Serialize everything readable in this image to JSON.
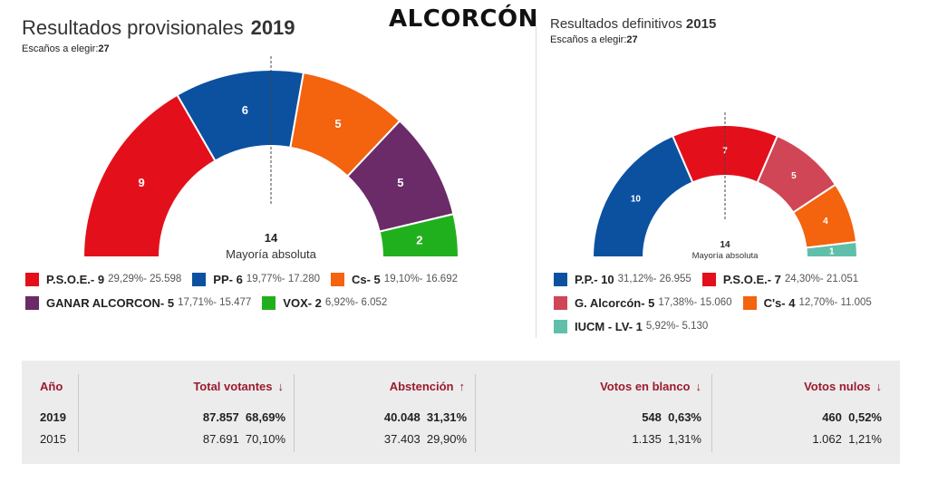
{
  "city": "ALCORCÓN",
  "left": {
    "title": "Resultados provisionales",
    "year": "2019",
    "seats_label": "Escaños a elegir:",
    "seats_value": "27",
    "majority_value": "14",
    "majority_label": "Mayoría absoluta"
  },
  "right": {
    "title": "Resultados definitivos",
    "year": "2015",
    "seats_label": "Escaños a elegir:",
    "seats_value": "27",
    "majority_value": "14",
    "majority_label": "Mayoría absoluta"
  },
  "legend_2019": [
    {
      "name": "P.S.O.E.- 9",
      "stat": "29,29%- 25.598",
      "color": "#e3101c"
    },
    {
      "name": "PP- 6",
      "stat": "19,77%- 17.280",
      "color": "#0b51a0"
    },
    {
      "name": "Cs- 5",
      "stat": "19,10%- 16.692",
      "color": "#f4630e"
    },
    {
      "name": "GANAR ALCORCON- 5",
      "stat": "17,71%- 15.477",
      "color": "#6b2a68"
    },
    {
      "name": "VOX- 2",
      "stat": "6,92%- 6.052",
      "color": "#21b01d"
    }
  ],
  "legend_2015": [
    {
      "name": "P.P.- 10",
      "stat": "31,12%- 26.955",
      "color": "#0b51a0"
    },
    {
      "name": "P.S.O.E.- 7",
      "stat": "24,30%- 21.051",
      "color": "#e3101c"
    },
    {
      "name": "G. Alcorcón- 5",
      "stat": "17,38%- 15.060",
      "color": "#d04656"
    },
    {
      "name": "C's- 4",
      "stat": "12,70%- 11.005",
      "color": "#f4630e"
    },
    {
      "name": "IUCM - LV- 1",
      "stat": "5,92%- 5.130",
      "color": "#5fbfaa"
    }
  ],
  "chart_data": [
    {
      "type": "pie",
      "title": "Resultados provisionales 2019",
      "total_seats": 27,
      "series": [
        {
          "name": "P.S.O.E.",
          "seats": 9,
          "color": "#e3101c"
        },
        {
          "name": "PP",
          "seats": 6,
          "color": "#0b51a0"
        },
        {
          "name": "Cs",
          "seats": 5,
          "color": "#f4630e"
        },
        {
          "name": "GANAR ALCORCON",
          "seats": 5,
          "color": "#6b2a68"
        },
        {
          "name": "VOX",
          "seats": 2,
          "color": "#21b01d"
        }
      ]
    },
    {
      "type": "pie",
      "title": "Resultados definitivos 2015",
      "total_seats": 27,
      "series": [
        {
          "name": "P.P.",
          "seats": 10,
          "color": "#0b51a0"
        },
        {
          "name": "P.S.O.E.",
          "seats": 7,
          "color": "#e3101c"
        },
        {
          "name": "G. Alcorcón",
          "seats": 5,
          "color": "#d04656"
        },
        {
          "name": "C's",
          "seats": 4,
          "color": "#f4630e"
        },
        {
          "name": "IUCM - LV",
          "seats": 1,
          "color": "#5fbfaa"
        }
      ]
    }
  ],
  "table": {
    "headers": {
      "year": "Año",
      "voters": "Total votantes",
      "abstention": "Abstención",
      "blank": "Votos en blanco",
      "null": "Votos nulos"
    },
    "arrows": {
      "voters": "↓",
      "abstention": "↑",
      "blank": "↓",
      "null": "↓"
    },
    "rows": [
      {
        "year": "2019",
        "voters": "87.857",
        "voters_pct": "68,69%",
        "abst": "40.048",
        "abst_pct": "31,31%",
        "blank": "548",
        "blank_pct": "0,63%",
        "null": "460",
        "null_pct": "0,52%"
      },
      {
        "year": "2015",
        "voters": "87.691",
        "voters_pct": "70,10%",
        "abst": "37.403",
        "abst_pct": "29,90%",
        "blank": "1.135",
        "blank_pct": "1,31%",
        "null": "1.062",
        "null_pct": "1,21%"
      }
    ]
  }
}
